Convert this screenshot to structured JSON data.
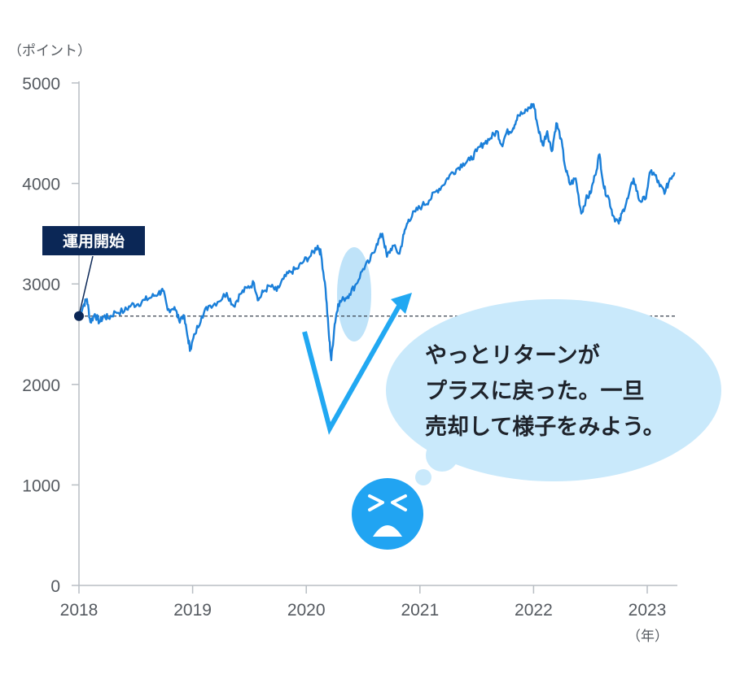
{
  "chart_data": {
    "type": "line",
    "ylabel": "（ポイント）",
    "xunit": "（年）",
    "ylim": [
      0,
      5000
    ],
    "yticks": [
      0,
      1000,
      2000,
      3000,
      4000,
      5000
    ],
    "xticks": [
      "2018",
      "2019",
      "2020",
      "2021",
      "2022",
      "2023"
    ],
    "xlim": [
      2018.0,
      2023.25
    ],
    "series": [
      {
        "values": [
          [
            2018.0,
            2680
          ],
          [
            2018.04,
            2790
          ],
          [
            2018.07,
            2850
          ],
          [
            2018.1,
            2620
          ],
          [
            2018.14,
            2700
          ],
          [
            2018.18,
            2620
          ],
          [
            2018.22,
            2680
          ],
          [
            2018.26,
            2660
          ],
          [
            2018.32,
            2720
          ],
          [
            2018.4,
            2730
          ],
          [
            2018.46,
            2790
          ],
          [
            2018.52,
            2800
          ],
          [
            2018.58,
            2840
          ],
          [
            2018.64,
            2870
          ],
          [
            2018.7,
            2910
          ],
          [
            2018.74,
            2930
          ],
          [
            2018.78,
            2740
          ],
          [
            2018.84,
            2770
          ],
          [
            2018.88,
            2640
          ],
          [
            2018.92,
            2690
          ],
          [
            2018.96,
            2450
          ],
          [
            2018.98,
            2350
          ],
          [
            2019.02,
            2500
          ],
          [
            2019.08,
            2680
          ],
          [
            2019.14,
            2780
          ],
          [
            2019.22,
            2820
          ],
          [
            2019.3,
            2910
          ],
          [
            2019.36,
            2780
          ],
          [
            2019.42,
            2900
          ],
          [
            2019.48,
            2960
          ],
          [
            2019.54,
            3010
          ],
          [
            2019.58,
            2840
          ],
          [
            2019.62,
            2920
          ],
          [
            2019.68,
            2980
          ],
          [
            2019.74,
            2930
          ],
          [
            2019.8,
            3050
          ],
          [
            2019.86,
            3120
          ],
          [
            2019.92,
            3150
          ],
          [
            2019.98,
            3230
          ],
          [
            2020.04,
            3280
          ],
          [
            2020.1,
            3380
          ],
          [
            2020.13,
            3300
          ],
          [
            2020.17,
            2950
          ],
          [
            2020.2,
            2480
          ],
          [
            2020.22,
            2240
          ],
          [
            2020.25,
            2600
          ],
          [
            2020.28,
            2800
          ],
          [
            2020.33,
            2850
          ],
          [
            2020.38,
            2900
          ],
          [
            2020.44,
            3000
          ],
          [
            2020.5,
            3150
          ],
          [
            2020.56,
            3230
          ],
          [
            2020.62,
            3400
          ],
          [
            2020.67,
            3500
          ],
          [
            2020.71,
            3270
          ],
          [
            2020.76,
            3380
          ],
          [
            2020.82,
            3300
          ],
          [
            2020.86,
            3500
          ],
          [
            2020.9,
            3640
          ],
          [
            2020.96,
            3720
          ],
          [
            2021.02,
            3780
          ],
          [
            2021.08,
            3830
          ],
          [
            2021.14,
            3920
          ],
          [
            2021.2,
            3980
          ],
          [
            2021.26,
            4080
          ],
          [
            2021.32,
            4140
          ],
          [
            2021.38,
            4200
          ],
          [
            2021.44,
            4230
          ],
          [
            2021.5,
            4320
          ],
          [
            2021.56,
            4400
          ],
          [
            2021.62,
            4450
          ],
          [
            2021.68,
            4520
          ],
          [
            2021.72,
            4380
          ],
          [
            2021.76,
            4500
          ],
          [
            2021.82,
            4550
          ],
          [
            2021.86,
            4680
          ],
          [
            2021.92,
            4700
          ],
          [
            2021.97,
            4760
          ],
          [
            2022.0,
            4790
          ],
          [
            2022.04,
            4550
          ],
          [
            2022.08,
            4380
          ],
          [
            2022.12,
            4520
          ],
          [
            2022.16,
            4320
          ],
          [
            2022.2,
            4600
          ],
          [
            2022.24,
            4450
          ],
          [
            2022.28,
            4150
          ],
          [
            2022.32,
            3990
          ],
          [
            2022.37,
            4050
          ],
          [
            2022.42,
            3700
          ],
          [
            2022.46,
            3840
          ],
          [
            2022.5,
            3900
          ],
          [
            2022.54,
            4080
          ],
          [
            2022.58,
            4290
          ],
          [
            2022.62,
            3950
          ],
          [
            2022.66,
            3860
          ],
          [
            2022.7,
            3680
          ],
          [
            2022.75,
            3600
          ],
          [
            2022.79,
            3740
          ],
          [
            2022.83,
            3850
          ],
          [
            2022.88,
            4050
          ],
          [
            2022.93,
            3830
          ],
          [
            2022.98,
            3840
          ],
          [
            2023.03,
            4120
          ],
          [
            2023.07,
            4080
          ],
          [
            2023.11,
            3970
          ],
          [
            2023.16,
            3920
          ],
          [
            2023.2,
            4050
          ],
          [
            2023.24,
            4110
          ]
        ]
      }
    ],
    "reference_line": 2680,
    "annotations": {
      "start_label": "運用開始",
      "speech": [
        "やっとリターンが",
        "プラスに戻った。一旦",
        "売却して様子をみよう。"
      ]
    }
  },
  "colors": {
    "line": "#1a7fd9",
    "axis": "#b9bec4",
    "text": "#555a60",
    "label_bg": "#0b2756",
    "bubble": "#c9e9fb",
    "arrow": "#21a8f2",
    "face": "#21a4f2",
    "highlight": "#a9d9f7",
    "dashed": "#3b4450"
  },
  "icons": {
    "face": "distressed-face-icon"
  }
}
